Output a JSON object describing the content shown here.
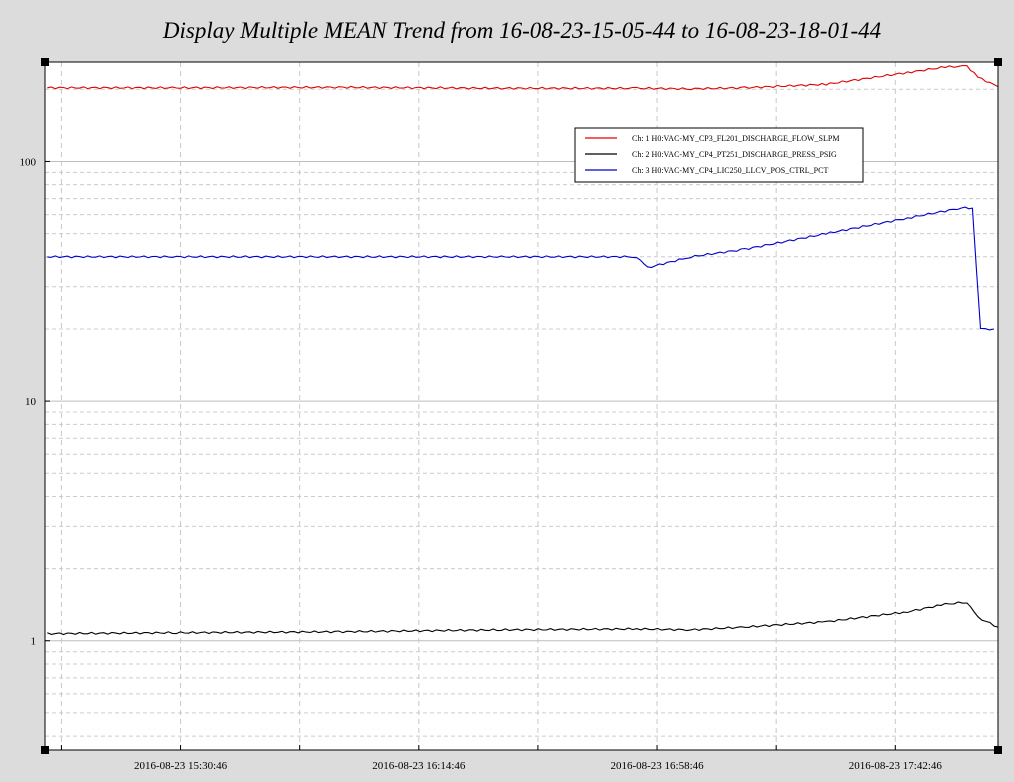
{
  "window": {
    "title": "Display Multiple MEAN Trend from 16-08-23-15-05-44 to 16-08-23-18-01-44"
  },
  "chart_data": {
    "type": "line",
    "title": "Display Multiple MEAN Trend from 16-08-23-15-05-44 to 16-08-23-18-01-44",
    "xlabel": "",
    "ylabel": "",
    "y_scale": "log",
    "ylim": [
      0.35,
      260
    ],
    "xlim": [
      "2016-08-23 15:05:44",
      "2016-08-23 18:01:44"
    ],
    "y_ticks": [
      1,
      10,
      100
    ],
    "y_tick_labels": [
      "1",
      "10",
      "100"
    ],
    "x_ticks": [
      "2016-08-23 15:30:46",
      "2016-08-23 16:14:46",
      "2016-08-23 16:58:46",
      "2016-08-23 17:42:46"
    ],
    "grid": true,
    "legend_position": "top-right",
    "colors": {
      "ch1": "#e00000",
      "ch2": "#000000",
      "ch3": "#0000cc",
      "background": "#ffffff",
      "page": "#dcdcdc"
    },
    "series": [
      {
        "name": "Ch: 1 H0:VAC-MY_CP3_FL201_DISCHARGE_FLOW_SLPM",
        "color": "#e00000",
        "x": [
          "2016-08-23 15:06:09",
          "2016-08-23 15:30:00",
          "2016-08-23 16:00:00",
          "2016-08-23 16:30:00",
          "2016-08-23 16:55:00",
          "2016-08-23 17:05:00",
          "2016-08-23 17:15:00",
          "2016-08-23 17:30:00",
          "2016-08-23 17:45:00",
          "2016-08-23 17:52:00",
          "2016-08-23 17:56:00",
          "2016-08-23 17:58:00",
          "2016-08-23 18:01:44"
        ],
        "y": [
          203,
          203,
          204,
          202,
          202,
          201,
          203,
          210,
          235,
          248,
          250,
          225,
          205
        ]
      },
      {
        "name": "Ch: 2 H0:VAC-MY_CP4_PT251_DISCHARGE_PRESS_PSIG",
        "color": "#000000",
        "x": [
          "2016-08-23 15:06:09",
          "2016-08-23 15:30:00",
          "2016-08-23 16:00:00",
          "2016-08-23 16:30:00",
          "2016-08-23 16:55:00",
          "2016-08-23 17:05:00",
          "2016-08-23 17:15:00",
          "2016-08-23 17:30:00",
          "2016-08-23 17:45:00",
          "2016-08-23 17:52:00",
          "2016-08-23 17:56:00",
          "2016-08-23 17:58:00",
          "2016-08-23 18:01:44"
        ],
        "y": [
          1.07,
          1.08,
          1.09,
          1.11,
          1.12,
          1.11,
          1.14,
          1.2,
          1.32,
          1.42,
          1.45,
          1.25,
          1.14
        ]
      },
      {
        "name": "Ch: 3 H0:VAC-MY_CP4_LIC250_LLCV_POS_CTRL_PCT",
        "color": "#0000cc",
        "x": [
          "2016-08-23 15:06:09",
          "2016-08-23 15:30:00",
          "2016-08-23 16:00:00",
          "2016-08-23 16:30:00",
          "2016-08-23 16:55:00",
          "2016-08-23 16:57:00",
          "2016-08-23 17:05:00",
          "2016-08-23 17:15:00",
          "2016-08-23 17:30:00",
          "2016-08-23 17:45:00",
          "2016-08-23 17:55:00",
          "2016-08-23 17:57:00",
          "2016-08-23 17:58:30",
          "2016-08-23 18:01:00"
        ],
        "y": [
          40,
          40,
          40,
          40,
          40,
          36,
          40,
          43,
          50,
          58,
          64,
          64,
          20,
          20
        ]
      }
    ]
  }
}
